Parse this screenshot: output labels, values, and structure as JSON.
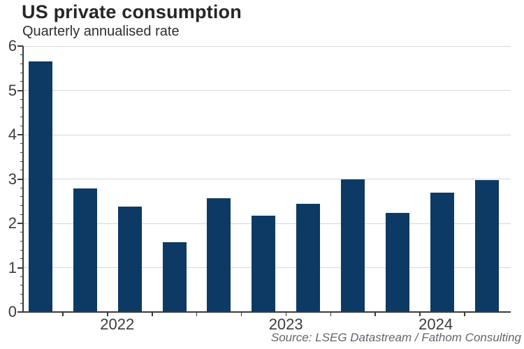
{
  "header": {
    "title": "US private consumption",
    "subtitle": "Quarterly annualised rate"
  },
  "footer": {
    "source": "Source: LSEG Datastream / Fathom Consulting"
  },
  "colors": {
    "bar": "#0d3a64",
    "grid": "#d8d8d8",
    "axis": "#3a3a3a",
    "tick": "#3a3a3a",
    "axis_text": "#3c3c3c",
    "title_text": "#262626",
    "source_text": "#62666b"
  },
  "chart_data": {
    "type": "bar",
    "title": "US private consumption",
    "subtitle": "Quarterly annualised rate",
    "x": [
      "2022 Q1",
      "2022 Q2",
      "2022 Q3",
      "2022 Q4",
      "2023 Q1",
      "2023 Q2",
      "2023 Q3",
      "2023 Q4",
      "2024 Q1",
      "2024 Q2",
      "2024 Q3"
    ],
    "values": [
      5.65,
      2.79,
      2.38,
      1.58,
      2.56,
      2.17,
      2.44,
      3.0,
      2.24,
      2.7,
      2.98
    ],
    "xlabel": "",
    "ylabel": "",
    "ylim": [
      0,
      6
    ],
    "yticks": [
      0,
      1,
      2,
      3,
      4,
      5,
      6
    ],
    "minor_tick_step": 0.2,
    "grid": "horizontal",
    "legend": "none",
    "year_labels": [
      {
        "label": "2022",
        "from_slot": 0,
        "to_slot": 3
      },
      {
        "label": "2023",
        "from_slot": 4,
        "to_slot": 7
      },
      {
        "label": "2024",
        "from_slot": 8,
        "to_slot": 10
      }
    ],
    "source": "Source: LSEG Datastream / Fathom Consulting"
  }
}
